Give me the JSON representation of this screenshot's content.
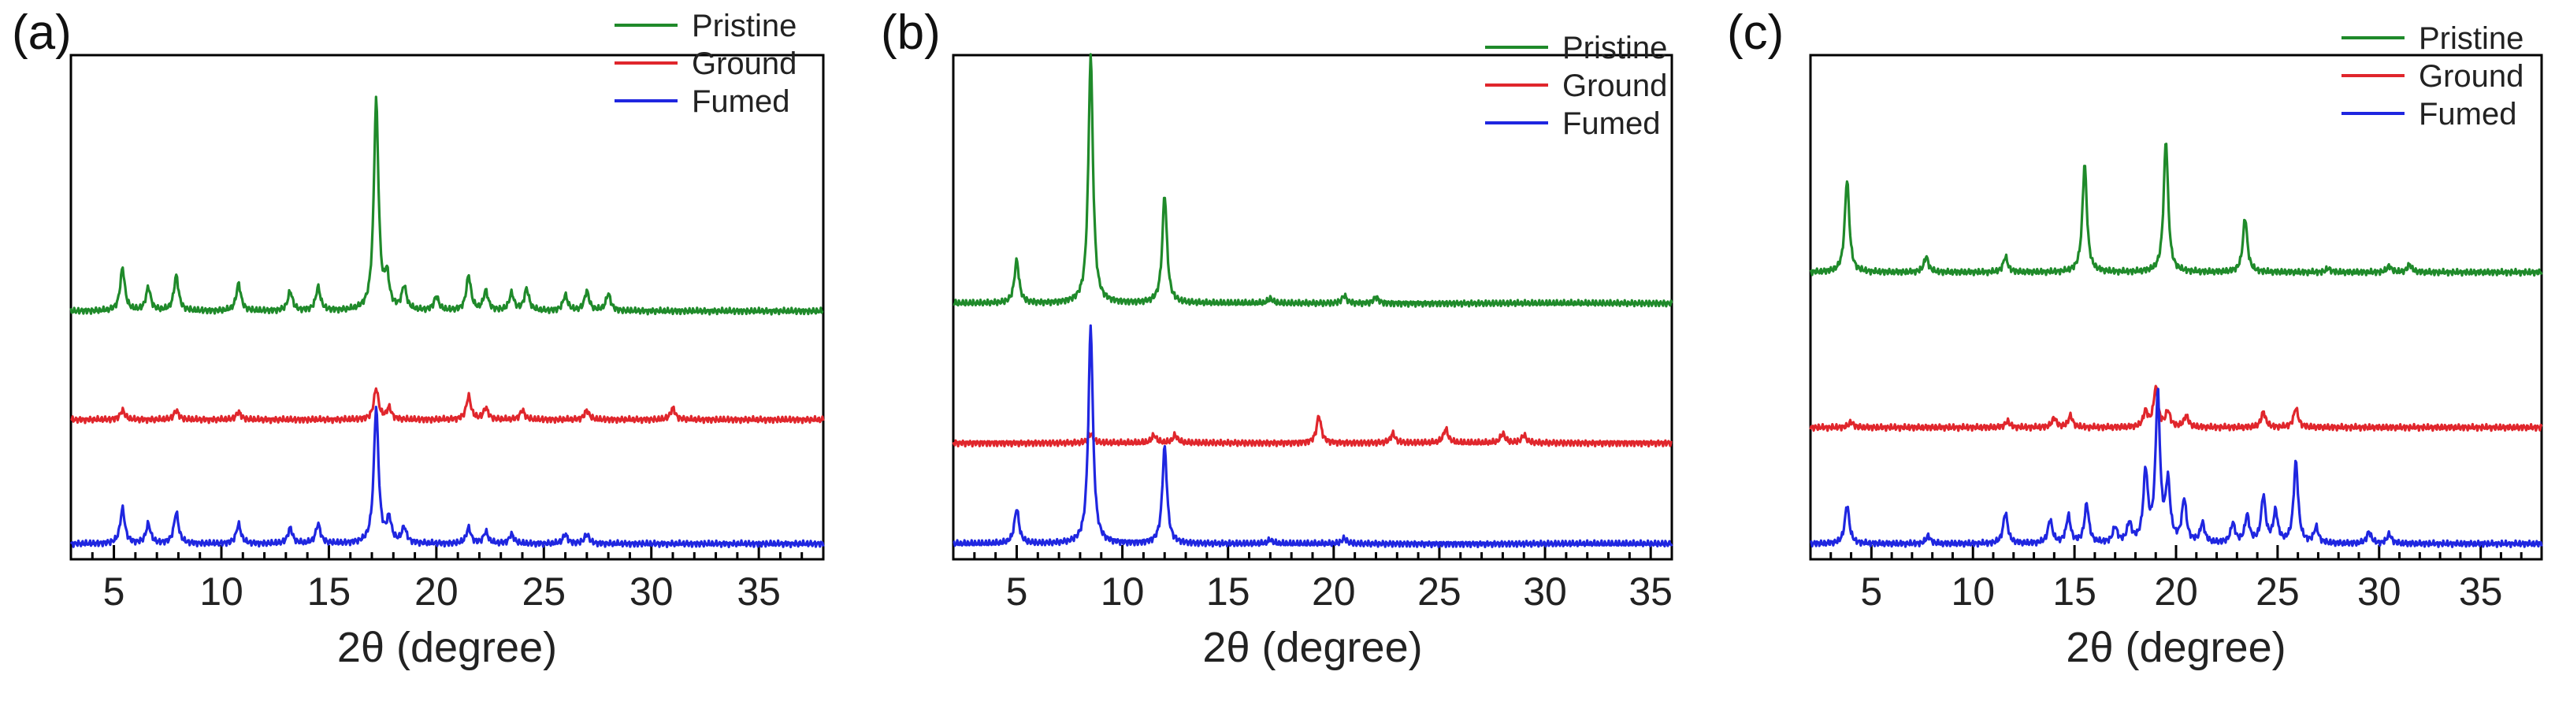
{
  "colors": {
    "Pristine": "#1f8a2a",
    "Ground": "#e0262c",
    "Fumed": "#1f26e0"
  },
  "chart_data": [
    {
      "panel_label": "(a)",
      "type": "line",
      "xlabel": "2θ (degree)",
      "ylabel": "",
      "xlim": [
        3,
        38
      ],
      "xticks": [
        5,
        10,
        15,
        20,
        25,
        30,
        35
      ],
      "x_minor_step": 1,
      "yticks_shown": false,
      "legend_position": "top-right",
      "series": [
        {
          "name": "Pristine",
          "baseline": 3.2,
          "peaks": [
            [
              5.4,
              0.55
            ],
            [
              6.6,
              0.3
            ],
            [
              7.9,
              0.45
            ],
            [
              10.8,
              0.35
            ],
            [
              13.2,
              0.25
            ],
            [
              14.5,
              0.3
            ],
            [
              17.2,
              2.7
            ],
            [
              17.7,
              0.4
            ],
            [
              18.5,
              0.3
            ],
            [
              20.0,
              0.18
            ],
            [
              21.5,
              0.45
            ],
            [
              22.3,
              0.25
            ],
            [
              23.5,
              0.22
            ],
            [
              24.2,
              0.28
            ],
            [
              26.0,
              0.2
            ],
            [
              27.0,
              0.25
            ],
            [
              28.0,
              0.22
            ]
          ]
        },
        {
          "name": "Ground",
          "baseline": 1.8,
          "peaks": [
            [
              5.4,
              0.12
            ],
            [
              7.9,
              0.12
            ],
            [
              10.8,
              0.1
            ],
            [
              17.2,
              0.4
            ],
            [
              17.8,
              0.15
            ],
            [
              21.5,
              0.3
            ],
            [
              22.3,
              0.15
            ],
            [
              24.0,
              0.12
            ],
            [
              27.0,
              0.12
            ],
            [
              31.0,
              0.15
            ]
          ]
        },
        {
          "name": "Fumed",
          "baseline": 0.2,
          "peaks": [
            [
              5.4,
              0.45
            ],
            [
              6.6,
              0.25
            ],
            [
              7.9,
              0.4
            ],
            [
              10.8,
              0.25
            ],
            [
              13.2,
              0.2
            ],
            [
              14.5,
              0.25
            ],
            [
              17.2,
              1.75
            ],
            [
              17.8,
              0.3
            ],
            [
              18.5,
              0.2
            ],
            [
              21.5,
              0.2
            ],
            [
              22.3,
              0.15
            ],
            [
              23.5,
              0.12
            ],
            [
              26.0,
              0.12
            ],
            [
              27.0,
              0.12
            ]
          ]
        }
      ]
    },
    {
      "panel_label": "(b)",
      "type": "line",
      "xlabel": "2θ (degree)",
      "ylabel": "",
      "xlim": [
        2,
        36
      ],
      "xticks": [
        5,
        10,
        15,
        20,
        25,
        30,
        35
      ],
      "x_minor_step": 1,
      "yticks_shown": false,
      "legend_position": "top-right",
      "series": [
        {
          "name": "Pristine",
          "baseline": 3.3,
          "peaks": [
            [
              5.0,
              0.55
            ],
            [
              8.5,
              3.2
            ],
            [
              12.0,
              1.4
            ],
            [
              17.0,
              0.06
            ],
            [
              20.5,
              0.1
            ],
            [
              22.0,
              0.08
            ]
          ]
        },
        {
          "name": "Ground",
          "baseline": 1.5,
          "peaks": [
            [
              8.5,
              0.12
            ],
            [
              11.5,
              0.1
            ],
            [
              12.5,
              0.1
            ],
            [
              19.3,
              0.35
            ],
            [
              22.8,
              0.12
            ],
            [
              25.3,
              0.18
            ],
            [
              28.0,
              0.12
            ],
            [
              29.0,
              0.1
            ]
          ]
        },
        {
          "name": "Fumed",
          "baseline": 0.2,
          "peaks": [
            [
              5.0,
              0.45
            ],
            [
              8.5,
              2.8
            ],
            [
              12.0,
              1.25
            ],
            [
              17.0,
              0.05
            ],
            [
              20.5,
              0.07
            ]
          ]
        }
      ]
    },
    {
      "panel_label": "(c)",
      "type": "line",
      "xlabel": "2θ (degree)",
      "ylabel": "",
      "xlim": [
        2,
        38
      ],
      "xticks": [
        5,
        10,
        15,
        20,
        25,
        30,
        35
      ],
      "x_minor_step": 1,
      "yticks_shown": false,
      "legend_position": "top-right",
      "series": [
        {
          "name": "Pristine",
          "baseline": 3.7,
          "peaks": [
            [
              3.8,
              1.2
            ],
            [
              7.7,
              0.2
            ],
            [
              11.6,
              0.2
            ],
            [
              15.5,
              1.4
            ],
            [
              19.5,
              1.7
            ],
            [
              23.4,
              0.7
            ],
            [
              27.5,
              0.05
            ],
            [
              30.5,
              0.08
            ],
            [
              31.5,
              0.1
            ]
          ]
        },
        {
          "name": "Ground",
          "baseline": 1.7,
          "peaks": [
            [
              4.0,
              0.07
            ],
            [
              11.7,
              0.08
            ],
            [
              14.0,
              0.12
            ],
            [
              14.8,
              0.15
            ],
            [
              18.5,
              0.2
            ],
            [
              19.0,
              0.5
            ],
            [
              19.6,
              0.2
            ],
            [
              20.5,
              0.15
            ],
            [
              24.3,
              0.2
            ],
            [
              25.9,
              0.25
            ]
          ]
        },
        {
          "name": "Fumed",
          "baseline": 0.2,
          "peaks": [
            [
              3.8,
              0.5
            ],
            [
              7.8,
              0.1
            ],
            [
              11.6,
              0.4
            ],
            [
              13.8,
              0.3
            ],
            [
              14.7,
              0.35
            ],
            [
              15.6,
              0.5
            ],
            [
              17.0,
              0.2
            ],
            [
              17.7,
              0.25
            ],
            [
              18.5,
              0.9
            ],
            [
              19.1,
              1.9
            ],
            [
              19.6,
              0.75
            ],
            [
              20.4,
              0.55
            ],
            [
              21.3,
              0.25
            ],
            [
              22.8,
              0.25
            ],
            [
              23.5,
              0.35
            ],
            [
              24.3,
              0.6
            ],
            [
              24.9,
              0.4
            ],
            [
              25.9,
              1.05
            ],
            [
              26.9,
              0.2
            ],
            [
              29.5,
              0.15
            ],
            [
              30.5,
              0.12
            ]
          ]
        }
      ]
    }
  ]
}
